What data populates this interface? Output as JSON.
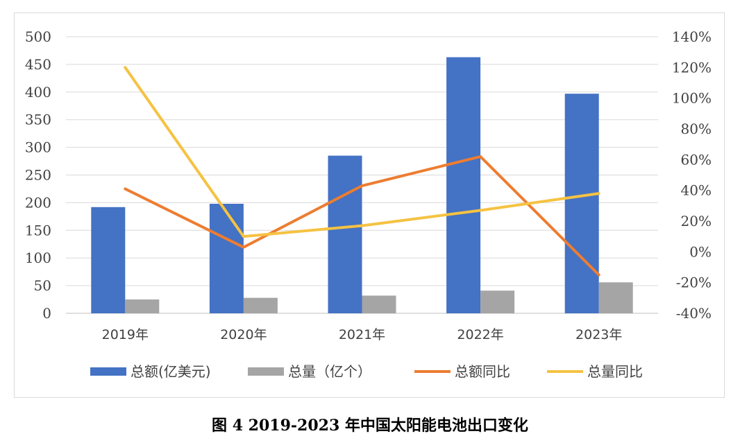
{
  "caption": "图 4 2019-2023 年中国太阳能电池出口变化",
  "chart_data": {
    "type": "bar",
    "categories": [
      "2019年",
      "2020年",
      "2021年",
      "2022年",
      "2023年"
    ],
    "left_axis": {
      "min": 0,
      "max": 500,
      "step": 50,
      "ticks": [
        "0",
        "50",
        "100",
        "150",
        "200",
        "250",
        "300",
        "350",
        "400",
        "450",
        "500"
      ]
    },
    "right_axis": {
      "min": -0.4,
      "max": 1.4,
      "step": 0.2,
      "ticks": [
        "-40%",
        "-20%",
        "0%",
        "20%",
        "40%",
        "60%",
        "80%",
        "100%",
        "120%",
        "140%"
      ]
    },
    "grid": true,
    "legend_position": "bottom",
    "series": [
      {
        "name": "总额(亿美元)",
        "type": "bar",
        "axis": "left",
        "color": "#4472C4",
        "values": [
          192,
          198,
          285,
          463,
          397
        ]
      },
      {
        "name": "总量（亿个）",
        "type": "bar",
        "axis": "left",
        "color": "#A5A5A5",
        "values": [
          25,
          28,
          32,
          41,
          56
        ]
      },
      {
        "name": "总额同比",
        "type": "line",
        "axis": "right",
        "color": "#ED7D31",
        "values": [
          0.41,
          0.03,
          0.43,
          0.62,
          -0.15
        ]
      },
      {
        "name": "总量同比",
        "type": "line",
        "axis": "right",
        "color": "#F5C242",
        "values": [
          1.2,
          0.1,
          0.17,
          0.27,
          0.38
        ]
      }
    ]
  }
}
